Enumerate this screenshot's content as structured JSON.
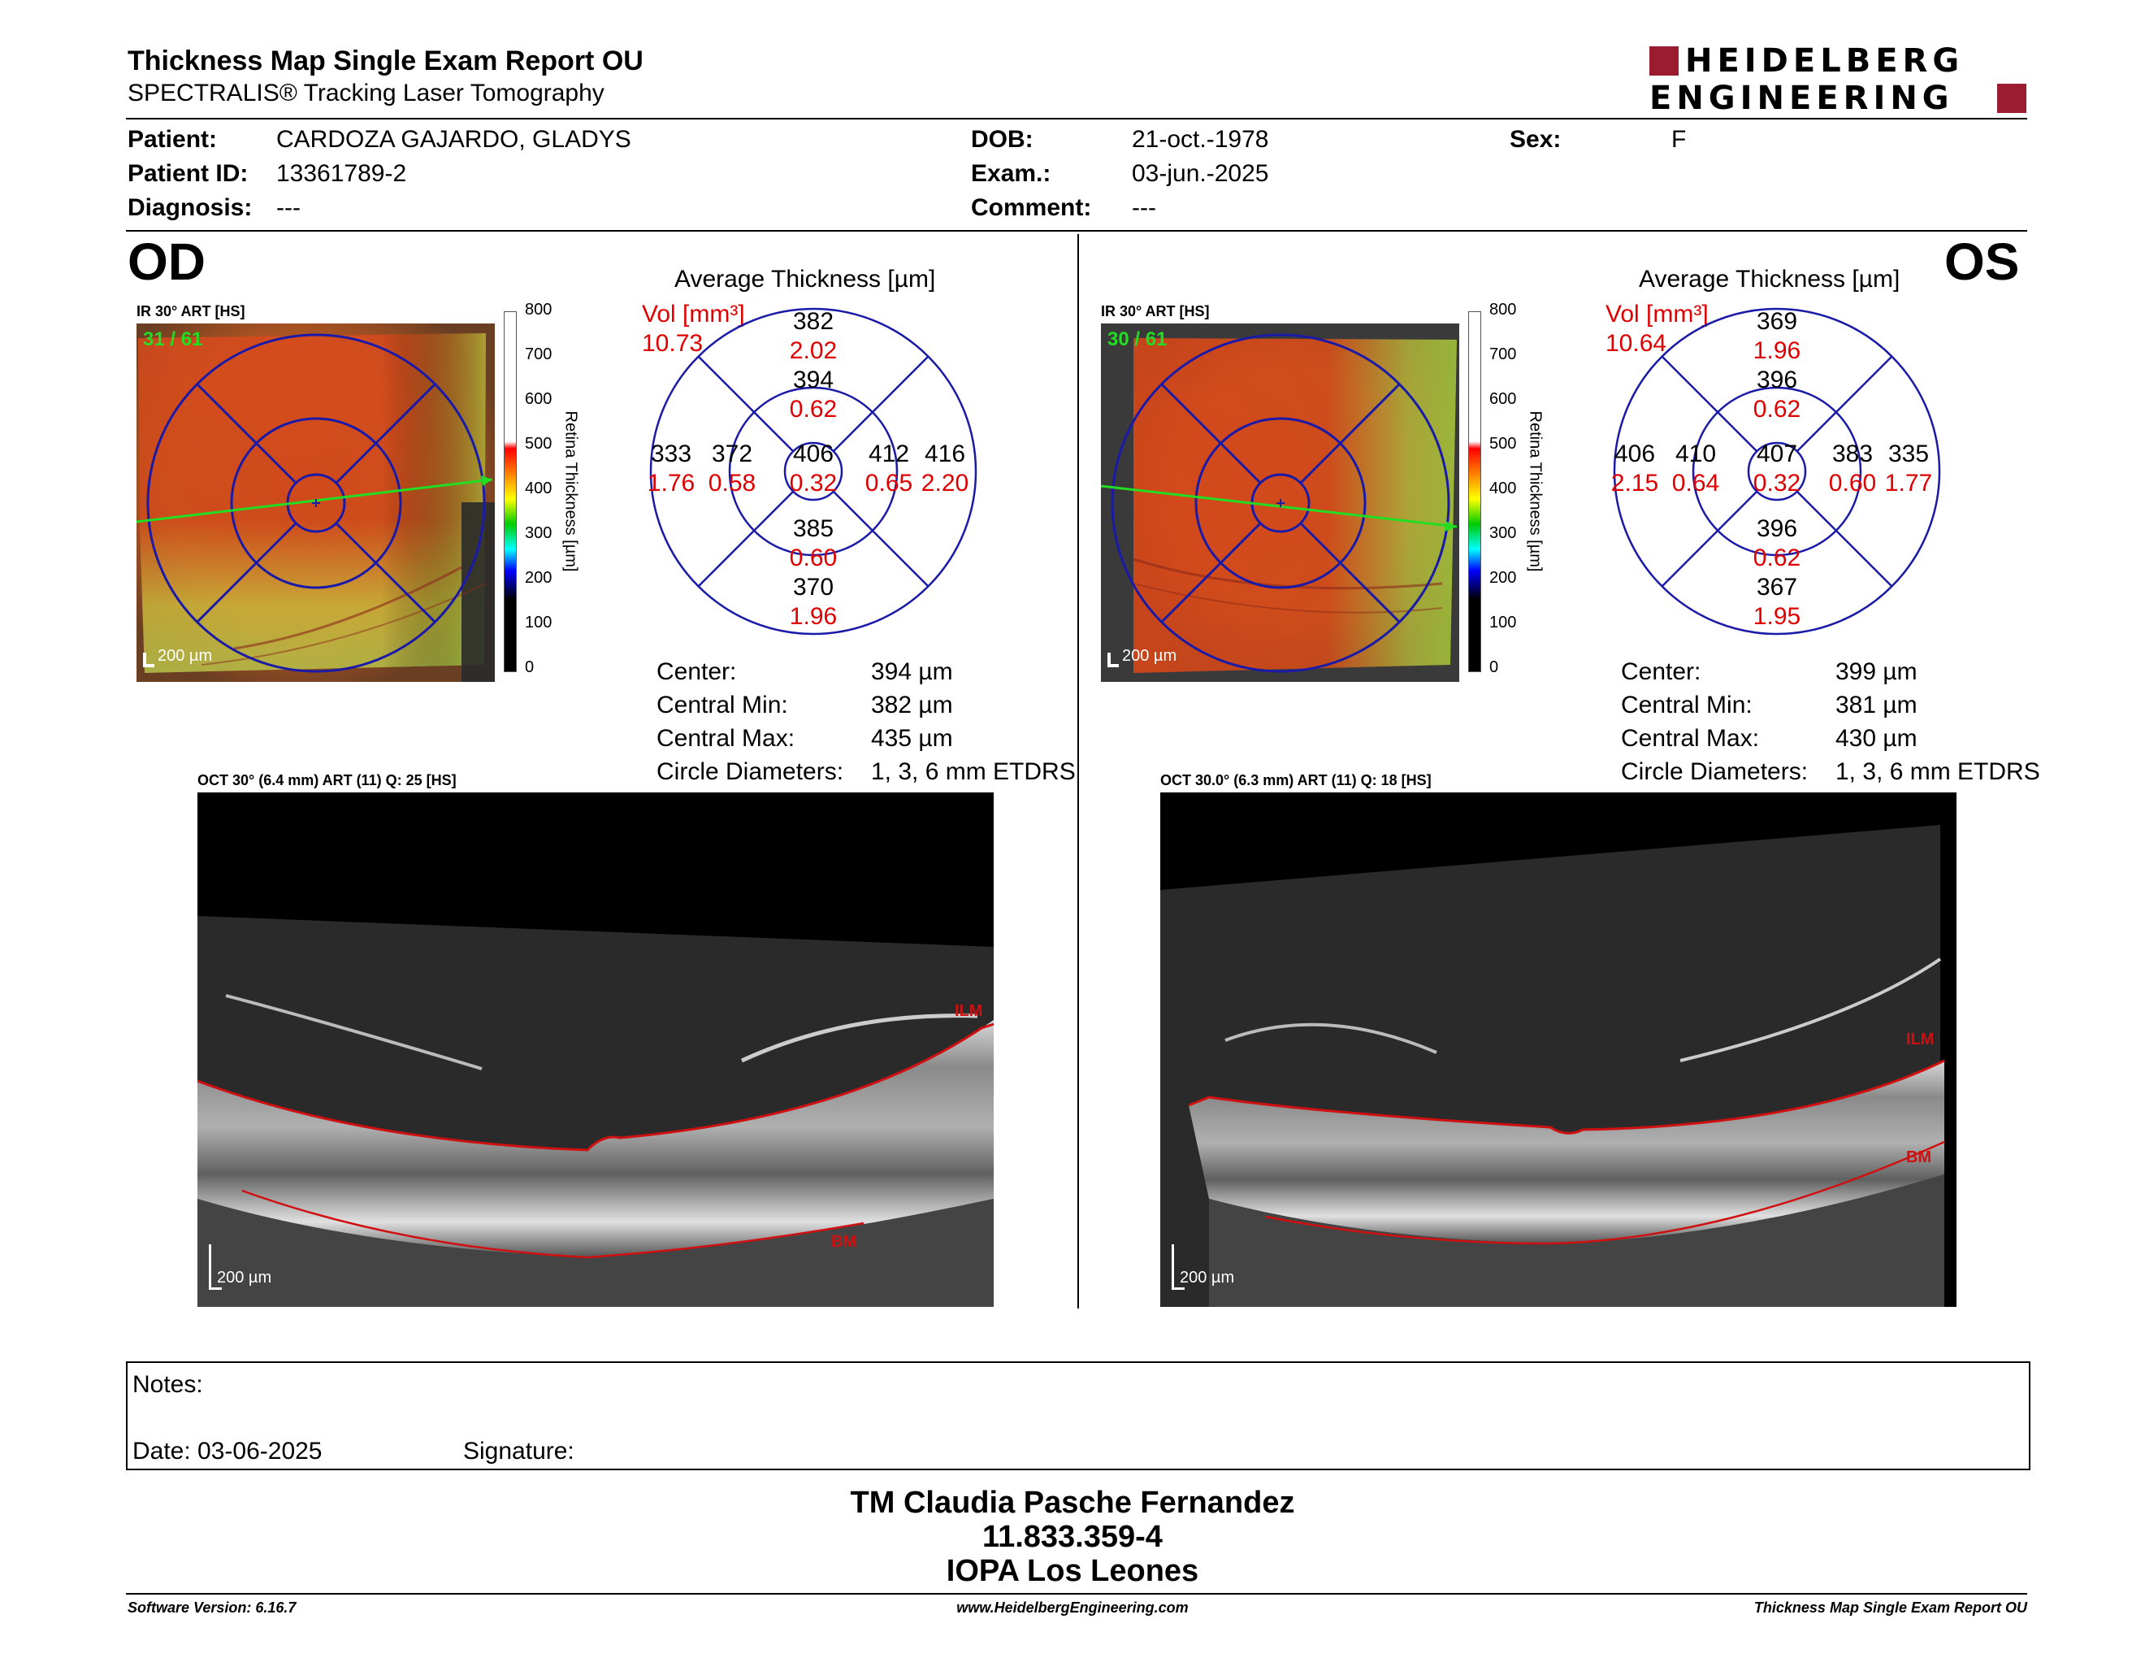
{
  "header": {
    "title": "Thickness Map Single Exam Report OU",
    "subtitle": "SPECTRALIS® Tracking Laser Tomography",
    "logo_line1": "HEIDELBERG",
    "logo_line2": "ENGINEERING",
    "brand_color": "#9b1b30"
  },
  "patient": {
    "patient_label": "Patient:",
    "patient_value": "CARDOZA GAJARDO, GLADYS",
    "id_label": "Patient ID:",
    "id_value": "13361789-2",
    "diagnosis_label": "Diagnosis:",
    "diagnosis_value": "---",
    "dob_label": "DOB:",
    "dob_value": "21-oct.-1978",
    "exam_label": "Exam.:",
    "exam_value": "03-jun.-2025",
    "comment_label": "Comment:",
    "comment_value": "---",
    "sex_label": "Sex:",
    "sex_value": "F"
  },
  "od": {
    "eye_label": "OD",
    "ir_caption": "IR 30° ART [HS]",
    "frame_counter": "31 / 61",
    "scale_bar": "200 µm",
    "avg_title": "Average Thickness [µm]",
    "vol_label": "Vol [mm³]",
    "vol_total": "10.73",
    "grid": {
      "outer_sup": {
        "t": "382",
        "v": "2.02"
      },
      "inner_sup": {
        "t": "394",
        "v": "0.62"
      },
      "outer_left": {
        "t": "333",
        "v": "1.76"
      },
      "inner_left": {
        "t": "372",
        "v": "0.58"
      },
      "center": {
        "t": "406",
        "v": "0.32"
      },
      "inner_right": {
        "t": "412",
        "v": "0.65"
      },
      "outer_right": {
        "t": "416",
        "v": "2.20"
      },
      "inner_inf": {
        "t": "385",
        "v": "0.60"
      },
      "outer_inf": {
        "t": "370",
        "v": "1.96"
      }
    },
    "stats": [
      {
        "label": "Center:",
        "value": "394 µm"
      },
      {
        "label": "Central Min:",
        "value": "382 µm"
      },
      {
        "label": "Central Max:",
        "value": "435 µm"
      },
      {
        "label": "Circle Diameters:",
        "value": "1, 3, 6 mm ETDRS"
      }
    ],
    "oct_caption": "OCT 30° (6.4 mm) ART (11) Q: 25 [HS]",
    "oct_scale": "200 µm",
    "ilm": "ILM",
    "bm": "BM"
  },
  "os": {
    "eye_label": "OS",
    "ir_caption": "IR 30° ART [HS]",
    "frame_counter": "30 / 61",
    "scale_bar": "200 µm",
    "avg_title": "Average Thickness [µm]",
    "vol_label": "Vol [mm³]",
    "vol_total": "10.64",
    "grid": {
      "outer_sup": {
        "t": "369",
        "v": "1.96"
      },
      "inner_sup": {
        "t": "396",
        "v": "0.62"
      },
      "outer_left": {
        "t": "406",
        "v": "2.15"
      },
      "inner_left": {
        "t": "410",
        "v": "0.64"
      },
      "center": {
        "t": "407",
        "v": "0.32"
      },
      "inner_right": {
        "t": "383",
        "v": "0.60"
      },
      "outer_right": {
        "t": "335",
        "v": "1.77"
      },
      "inner_inf": {
        "t": "396",
        "v": "0.62"
      },
      "outer_inf": {
        "t": "367",
        "v": "1.95"
      }
    },
    "stats": [
      {
        "label": "Center:",
        "value": "399 µm"
      },
      {
        "label": "Central Min:",
        "value": "381 µm"
      },
      {
        "label": "Central Max:",
        "value": "430 µm"
      },
      {
        "label": "Circle Diameters:",
        "value": "1, 3, 6 mm ETDRS"
      }
    ],
    "oct_caption": "OCT 30.0° (6.3 mm) ART (11) Q: 18 [HS]",
    "oct_scale": "200 µm",
    "ilm": "ILM",
    "bm": "BM"
  },
  "colorbar": {
    "ticks": [
      "800",
      "700",
      "600",
      "500",
      "400",
      "300",
      "200",
      "100",
      "0"
    ],
    "title": "Retina  Thickness [µm]"
  },
  "notes": {
    "notes_label": "Notes:",
    "date_label": "Date: 03-06-2025",
    "signature_label": "Signature:"
  },
  "signature_block": {
    "name": "TM Claudia Pasche Fernandez",
    "id": "11.833.359-4",
    "institution": "IOPA Los Leones"
  },
  "footer": {
    "software": "Software Version: 6.16.7",
    "website": "www.HeidelbergEngineering.com",
    "report_name": "Thickness Map Single Exam Report OU"
  },
  "colors": {
    "grid_blue": "#1a1aa8",
    "volume_red": "#e00000",
    "scan_green": "#22dd22",
    "segmentation_red": "#d01010"
  }
}
